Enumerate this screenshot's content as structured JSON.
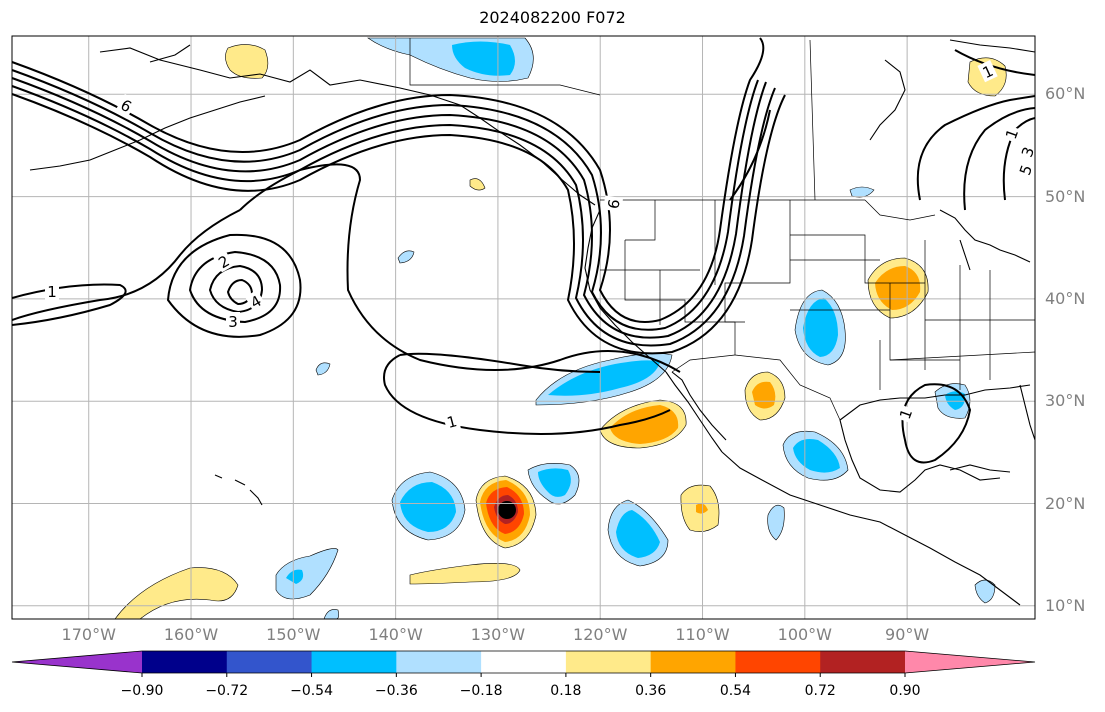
{
  "title": "2024082200 F072",
  "lat_labels": [
    {
      "text": "60°N",
      "lat": 60
    },
    {
      "text": "50°N",
      "lat": 50
    },
    {
      "text": "40°N",
      "lat": 40
    },
    {
      "text": "30°N",
      "lat": 30
    },
    {
      "text": "20°N",
      "lat": 20
    },
    {
      "text": "10°N",
      "lat": 10
    }
  ],
  "lon_labels": [
    {
      "text": "170°W",
      "lon": -170
    },
    {
      "text": "160°W",
      "lon": -160
    },
    {
      "text": "150°W",
      "lon": -150
    },
    {
      "text": "140°W",
      "lon": -140
    },
    {
      "text": "130°W",
      "lon": -130
    },
    {
      "text": "120°W",
      "lon": -120
    },
    {
      "text": "110°W",
      "lon": -110
    },
    {
      "text": "100°W",
      "lon": -100
    },
    {
      "text": "90°W",
      "lon": -90
    }
  ],
  "colorbar": {
    "colors": [
      "#9933cc",
      "#00008b",
      "#3355cc",
      "#00bfff",
      "#b0e0ff",
      "#ffffff",
      "#ffea8a",
      "#ffa500",
      "#ff4500",
      "#b22222",
      "#ff88aa"
    ],
    "ticks": [
      "−0.90",
      "−0.72",
      "−0.54",
      "−0.36",
      "−0.18",
      "0.18",
      "0.36",
      "0.54",
      "0.72",
      "0.90"
    ]
  },
  "contour_labels": [
    "1",
    "2",
    "3",
    "4",
    "6",
    "1",
    "1",
    "1",
    "1",
    "3",
    "5",
    "6"
  ]
}
